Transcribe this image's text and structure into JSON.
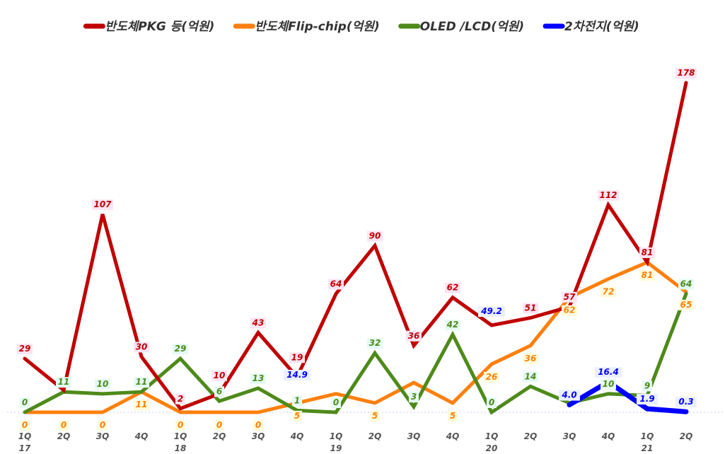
{
  "chart_data": {
    "type": "line",
    "title": "",
    "xlabel": "",
    "ylabel": "",
    "ylim": [
      0,
      178
    ],
    "grid": false,
    "legend_position": "top",
    "years": [
      "17",
      "",
      "",
      "",
      "18",
      "",
      "",
      "",
      "19",
      "",
      "",
      "",
      "20",
      "",
      "",
      "",
      "21",
      ""
    ],
    "quarters": [
      "1Q",
      "2Q",
      "3Q",
      "4Q",
      "1Q",
      "2Q",
      "3Q",
      "4Q",
      "1Q",
      "2Q",
      "3Q",
      "4Q",
      "1Q",
      "2Q",
      "3Q",
      "4Q",
      "1Q",
      "2Q"
    ],
    "categories": [
      "17 1Q",
      "2Q",
      "3Q",
      "4Q",
      "18 1Q",
      "2Q",
      "3Q",
      "4Q",
      "19 1Q",
      "2Q",
      "3Q",
      "4Q",
      "20 1Q",
      "2Q",
      "3Q",
      "4Q",
      "21 1Q",
      "2Q"
    ],
    "series": [
      {
        "name": "반도체PKG 등(억원)",
        "color": "#c00000",
        "values": [
          29,
          12,
          107,
          30,
          2,
          10,
          43,
          19,
          64,
          90,
          36,
          62,
          47,
          51,
          57,
          112,
          81,
          178
        ],
        "labels": [
          "29",
          "",
          "107",
          "30",
          "2",
          "10",
          "43",
          "19",
          "64",
          "90",
          "36",
          "62",
          "",
          "51",
          "57",
          "112",
          "81",
          "178"
        ]
      },
      {
        "name": "반도체Flip-chip(억원)",
        "color": "#ff7f0e",
        "values": [
          0,
          0,
          0,
          11,
          0,
          0,
          0,
          5,
          10,
          5,
          16,
          5,
          26,
          36,
          62,
          72,
          81,
          65
        ],
        "labels": [
          "0",
          "0",
          "0",
          "11",
          "0",
          "0",
          "0",
          "5",
          "",
          "5",
          "",
          "5",
          "26",
          "36",
          "62",
          "72",
          "81",
          "65"
        ]
      },
      {
        "name": "OLED /LCD(억원)",
        "color": "#4e8a1a",
        "values": [
          0,
          11,
          10,
          11,
          29,
          6,
          13,
          1,
          0,
          32,
          3,
          42,
          0,
          14,
          5,
          10,
          9,
          64
        ],
        "labels": [
          "0",
          "11",
          "10",
          "11",
          "29",
          "6",
          "13",
          "1",
          "0",
          "32",
          "3",
          "42",
          "0",
          "14",
          "",
          "10",
          "9",
          "64"
        ]
      },
      {
        "name": "2차전지(억원)",
        "color": "#0000ff",
        "values": [
          null,
          null,
          null,
          null,
          null,
          null,
          null,
          14.9,
          null,
          null,
          null,
          null,
          49.2,
          null,
          4.0,
          16.4,
          1.9,
          0.3
        ],
        "labels": [
          "",
          "",
          "",
          "",
          "",
          "",
          "",
          "14.9",
          "",
          "",
          "",
          "",
          "49.2",
          "",
          "4.0",
          "16.4",
          "1.9",
          "0.3"
        ],
        "line_from_index": 14
      }
    ]
  }
}
